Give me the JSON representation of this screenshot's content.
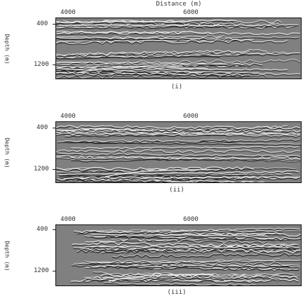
{
  "figure": {
    "x_axis_label": "Distance (m)",
    "y_axis_label": "Depth (m)",
    "colors": {
      "background": "#808080",
      "light": "#f2f2f2",
      "dark": "#1a1a1a"
    }
  },
  "panels": [
    {
      "caption": "(i)",
      "x_ticks": [
        "4000",
        "6000"
      ],
      "y_ticks": [
        "400",
        "1200"
      ]
    },
    {
      "caption": "(ii)",
      "x_ticks": [
        "4000",
        "6000"
      ],
      "y_ticks": [
        "400",
        "1200"
      ]
    },
    {
      "caption": "(iii)",
      "x_ticks": [
        "4000",
        "6000"
      ],
      "y_ticks": [
        "400",
        "1200"
      ]
    }
  ]
}
